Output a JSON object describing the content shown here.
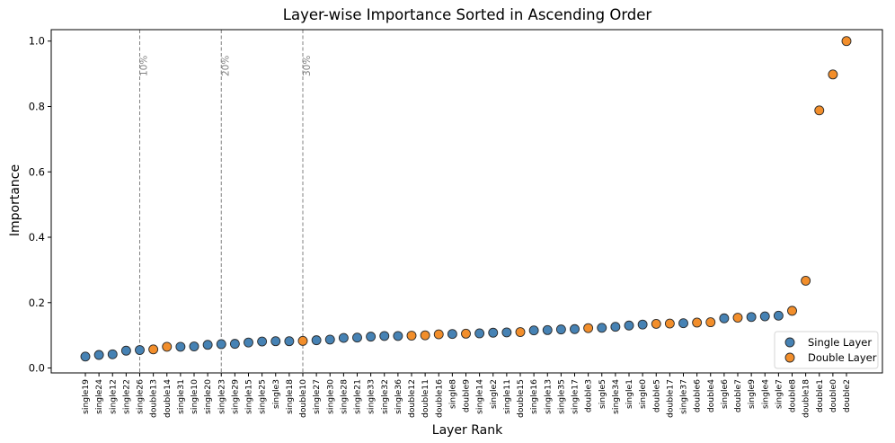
{
  "chart_data": {
    "type": "scatter",
    "title": "Layer-wise Importance Sorted in Ascending Order",
    "xlabel": "Layer Rank",
    "ylabel": "Importance",
    "ylim": [
      -0.015,
      1.035
    ],
    "yticks": [
      0.0,
      0.2,
      0.4,
      0.6,
      0.8,
      1.0
    ],
    "ytick_labels": [
      "0.0",
      "0.2",
      "0.4",
      "0.6",
      "0.8",
      "1.0"
    ],
    "grid": false,
    "legend_position": "bottom-right",
    "colors": {
      "single": "#4682b4",
      "double": "#f28e2b"
    },
    "series": [
      {
        "key": "single",
        "name": "Single Layer"
      },
      {
        "key": "double",
        "name": "Double Layer"
      }
    ],
    "percentile_lines": [
      {
        "at_index": 4,
        "label": "10%"
      },
      {
        "at_index": 10,
        "label": "20%"
      },
      {
        "at_index": 16,
        "label": "30%"
      }
    ],
    "points": [
      {
        "label": "single19",
        "type": "single",
        "value": 0.035
      },
      {
        "label": "single24",
        "type": "single",
        "value": 0.04
      },
      {
        "label": "single12",
        "type": "single",
        "value": 0.042
      },
      {
        "label": "single22",
        "type": "single",
        "value": 0.053
      },
      {
        "label": "single26",
        "type": "single",
        "value": 0.055
      },
      {
        "label": "double13",
        "type": "double",
        "value": 0.057
      },
      {
        "label": "double14",
        "type": "double",
        "value": 0.065
      },
      {
        "label": "single31",
        "type": "single",
        "value": 0.065
      },
      {
        "label": "single10",
        "type": "single",
        "value": 0.066
      },
      {
        "label": "single20",
        "type": "single",
        "value": 0.071
      },
      {
        "label": "single23",
        "type": "single",
        "value": 0.073
      },
      {
        "label": "single29",
        "type": "single",
        "value": 0.074
      },
      {
        "label": "single15",
        "type": "single",
        "value": 0.078
      },
      {
        "label": "single25",
        "type": "single",
        "value": 0.081
      },
      {
        "label": "single3",
        "type": "single",
        "value": 0.082
      },
      {
        "label": "single18",
        "type": "single",
        "value": 0.082
      },
      {
        "label": "double10",
        "type": "double",
        "value": 0.083
      },
      {
        "label": "single27",
        "type": "single",
        "value": 0.085
      },
      {
        "label": "single30",
        "type": "single",
        "value": 0.087
      },
      {
        "label": "single28",
        "type": "single",
        "value": 0.092
      },
      {
        "label": "single21",
        "type": "single",
        "value": 0.093
      },
      {
        "label": "single33",
        "type": "single",
        "value": 0.096
      },
      {
        "label": "single32",
        "type": "single",
        "value": 0.098
      },
      {
        "label": "single36",
        "type": "single",
        "value": 0.098
      },
      {
        "label": "double12",
        "type": "double",
        "value": 0.099
      },
      {
        "label": "double11",
        "type": "double",
        "value": 0.1
      },
      {
        "label": "double16",
        "type": "double",
        "value": 0.103
      },
      {
        "label": "single8",
        "type": "single",
        "value": 0.104
      },
      {
        "label": "double9",
        "type": "double",
        "value": 0.105
      },
      {
        "label": "single14",
        "type": "single",
        "value": 0.106
      },
      {
        "label": "single2",
        "type": "single",
        "value": 0.108
      },
      {
        "label": "single11",
        "type": "single",
        "value": 0.109
      },
      {
        "label": "double15",
        "type": "double",
        "value": 0.11
      },
      {
        "label": "single16",
        "type": "single",
        "value": 0.115
      },
      {
        "label": "single13",
        "type": "single",
        "value": 0.116
      },
      {
        "label": "single35",
        "type": "single",
        "value": 0.118
      },
      {
        "label": "single17",
        "type": "single",
        "value": 0.119
      },
      {
        "label": "double3",
        "type": "double",
        "value": 0.122
      },
      {
        "label": "single5",
        "type": "single",
        "value": 0.123
      },
      {
        "label": "single34",
        "type": "single",
        "value": 0.126
      },
      {
        "label": "single1",
        "type": "single",
        "value": 0.13
      },
      {
        "label": "single0",
        "type": "single",
        "value": 0.133
      },
      {
        "label": "double5",
        "type": "double",
        "value": 0.135
      },
      {
        "label": "double17",
        "type": "double",
        "value": 0.136
      },
      {
        "label": "single37",
        "type": "single",
        "value": 0.137
      },
      {
        "label": "double6",
        "type": "double",
        "value": 0.139
      },
      {
        "label": "double4",
        "type": "double",
        "value": 0.14
      },
      {
        "label": "single6",
        "type": "single",
        "value": 0.152
      },
      {
        "label": "double7",
        "type": "double",
        "value": 0.154
      },
      {
        "label": "single9",
        "type": "single",
        "value": 0.156
      },
      {
        "label": "single4",
        "type": "single",
        "value": 0.158
      },
      {
        "label": "single7",
        "type": "single",
        "value": 0.16
      },
      {
        "label": "double8",
        "type": "double",
        "value": 0.175
      },
      {
        "label": "double18",
        "type": "double",
        "value": 0.267
      },
      {
        "label": "double1",
        "type": "double",
        "value": 0.788
      },
      {
        "label": "double0",
        "type": "double",
        "value": 0.898
      },
      {
        "label": "double2",
        "type": "double",
        "value": 1.0
      }
    ]
  }
}
